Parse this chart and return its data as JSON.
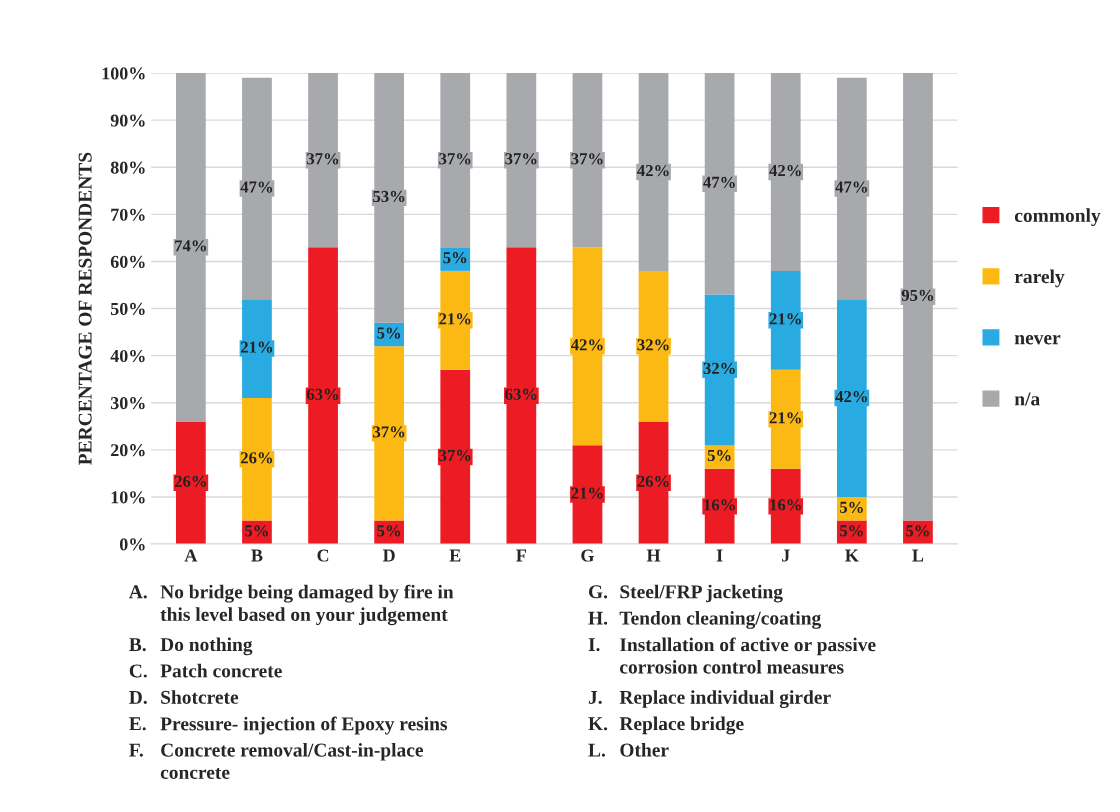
{
  "chart_data": {
    "type": "bar",
    "stacked": true,
    "categories": [
      "A",
      "B",
      "C",
      "D",
      "E",
      "F",
      "G",
      "H",
      "I",
      "J",
      "K",
      "L"
    ],
    "ylabel": "PERCENTAGE OF RESPONDENTS",
    "series": [
      {
        "name": "commonly",
        "color": "#ed1c24",
        "values": [
          26,
          5,
          63,
          5,
          37,
          63,
          21,
          26,
          16,
          16,
          5,
          5
        ],
        "value_labels": [
          "26%",
          "5%",
          "63%",
          "5%",
          "37%",
          "63%",
          "21%",
          "26%",
          "16%",
          "16%",
          "5%",
          "5%"
        ]
      },
      {
        "name": "rarely",
        "color": "#fdb913",
        "values": [
          0,
          26,
          0,
          37,
          21,
          0,
          42,
          32,
          5,
          21,
          5,
          0
        ],
        "value_labels": [
          null,
          "26%",
          null,
          "37%",
          "21%",
          null,
          "42%",
          "32%",
          "5%",
          "21%",
          "5%",
          null
        ]
      },
      {
        "name": "never",
        "color": "#29abe2",
        "values": [
          0,
          21,
          0,
          5,
          5,
          0,
          0,
          0,
          32,
          21,
          42,
          0
        ],
        "value_labels": [
          null,
          "21%",
          null,
          "5%",
          "5%",
          null,
          null,
          null,
          "32%",
          "21%",
          "42%",
          null
        ]
      },
      {
        "name": "n/a",
        "color": "#a7a9ac",
        "values": [
          74,
          47,
          37,
          53,
          37,
          37,
          37,
          42,
          47,
          42,
          47,
          95
        ],
        "value_labels": [
          "74%",
          "47%",
          "37%",
          "53%",
          "37%",
          "37%",
          "37%",
          "42%",
          "47%",
          "42%",
          "47%",
          "95%"
        ]
      }
    ],
    "ylim": [
      0,
      100
    ],
    "yticks": [
      {
        "value": 0,
        "label": "0%"
      },
      {
        "value": 10,
        "label": "10%"
      },
      {
        "value": 20,
        "label": "20%"
      },
      {
        "value": 30,
        "label": "30%"
      },
      {
        "value": 40,
        "label": "40%"
      },
      {
        "value": 50,
        "label": "50%"
      },
      {
        "value": 60,
        "label": "60%"
      },
      {
        "value": 70,
        "label": "70%"
      },
      {
        "value": 80,
        "label": "80%"
      },
      {
        "value": 90,
        "label": "90%"
      },
      {
        "value": 100,
        "label": "100%"
      }
    ],
    "grid": "y",
    "legend": "right",
    "annotations": [
      "A. No bridge being damaged by fire in\nthis level based on your judgement",
      "B. Do nothing",
      "C. Patch concrete",
      "D. Shotcrete",
      "E. Pressure- injection of Epoxy resins",
      "F. Concrete removal/Cast-in-place\nconcrete",
      "G. Steel/FRP jacketing",
      "H. Tendon cleaning/coating",
      "I. Installation of active or passive\ncorrosion control measures",
      "J. Replace individual girder",
      "K. Replace bridge",
      "L. Other"
    ]
  }
}
